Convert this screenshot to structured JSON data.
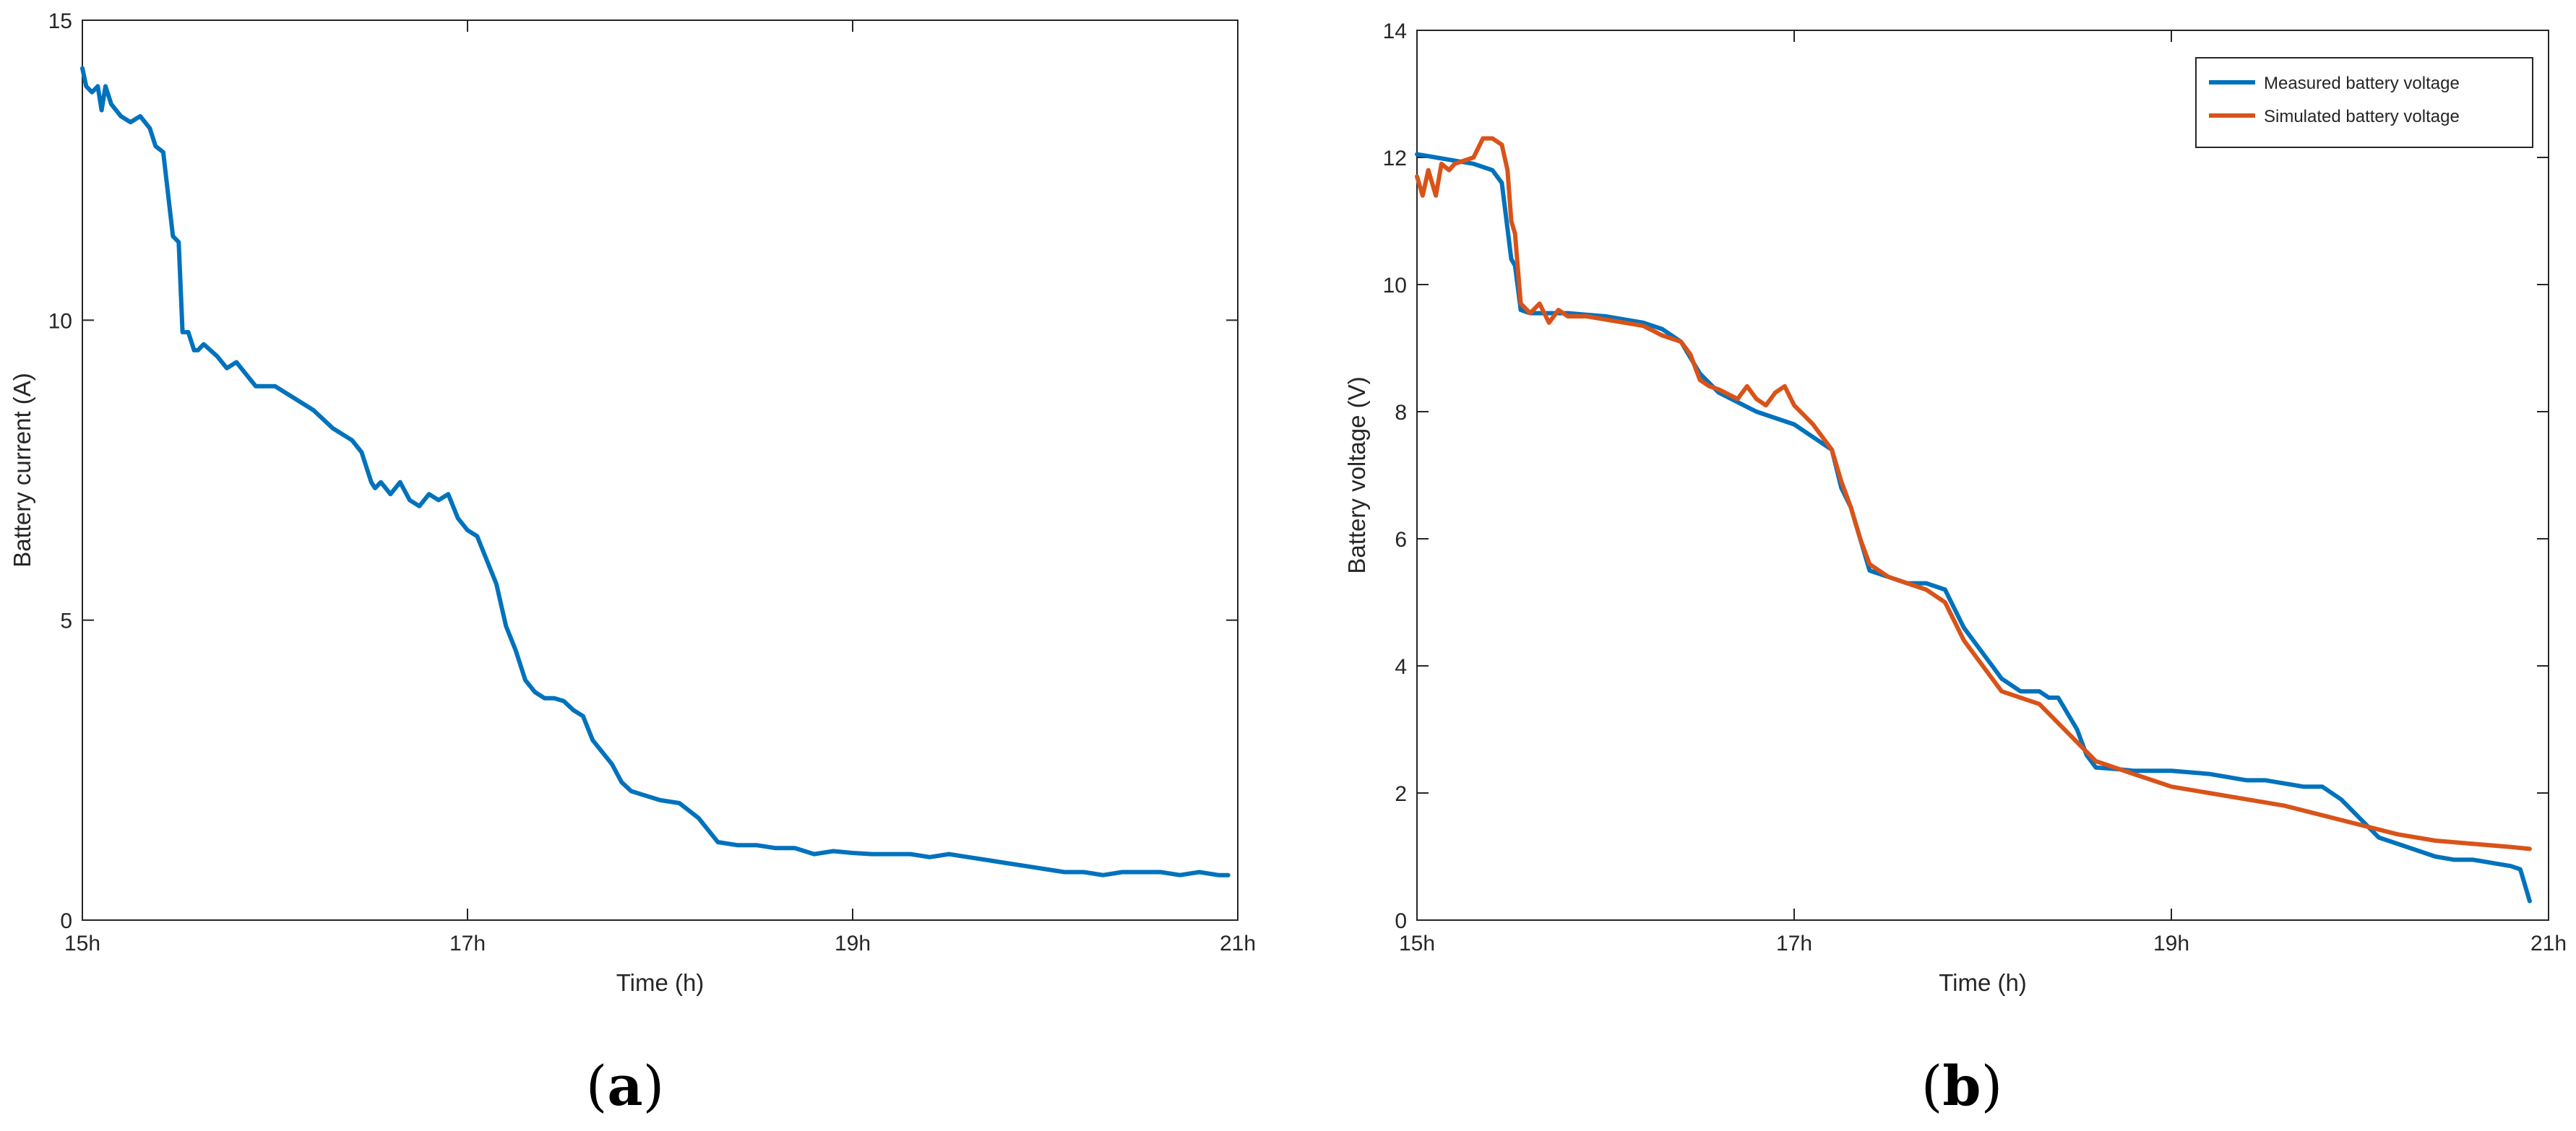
{
  "panels": [
    {
      "label": "a",
      "xlabel": "Time (h)",
      "ylabel": "Battery current (A)"
    },
    {
      "label": "b",
      "xlabel": "Time (h)",
      "ylabel": "Battery voltage (V)"
    }
  ],
  "chart_data": [
    {
      "type": "line",
      "title": "",
      "xlabel": "Time (h)",
      "ylabel": "Battery current (A)",
      "xlim": [
        15,
        21
      ],
      "ylim": [
        0,
        15
      ],
      "xticks": [
        15,
        17,
        19,
        21
      ],
      "xtick_labels": [
        "15h",
        "17h",
        "19h",
        "21h"
      ],
      "yticks": [
        0,
        5,
        10,
        15
      ],
      "ytick_labels": [
        "0",
        "5",
        "10",
        "15"
      ],
      "grid": false,
      "legend": null,
      "series": [
        {
          "color": "#0072BD",
          "x": [
            15.0,
            15.02,
            15.05,
            15.08,
            15.1,
            15.12,
            15.15,
            15.2,
            15.25,
            15.3,
            15.35,
            15.38,
            15.42,
            15.47,
            15.5,
            15.52,
            15.55,
            15.58,
            15.6,
            15.63,
            15.7,
            15.75,
            15.8,
            15.85,
            15.9,
            16.0,
            16.1,
            16.2,
            16.3,
            16.4,
            16.45,
            16.5,
            16.52,
            16.55,
            16.6,
            16.65,
            16.7,
            16.75,
            16.8,
            16.85,
            16.9,
            16.95,
            17.0,
            17.05,
            17.1,
            17.15,
            17.2,
            17.25,
            17.3,
            17.35,
            17.4,
            17.45,
            17.5,
            17.55,
            17.6,
            17.65,
            17.7,
            17.75,
            17.8,
            17.85,
            17.9,
            17.95,
            18.0,
            18.1,
            18.2,
            18.3,
            18.4,
            18.5,
            18.6,
            18.7,
            18.8,
            18.9,
            19.0,
            19.1,
            19.2,
            19.3,
            19.4,
            19.5,
            19.6,
            19.7,
            19.8,
            19.9,
            20.0,
            20.1,
            20.2,
            20.3,
            20.4,
            20.5,
            20.6,
            20.7,
            20.8,
            20.9,
            20.95
          ],
          "y": [
            14.2,
            13.9,
            13.8,
            13.9,
            13.5,
            13.9,
            13.6,
            13.4,
            13.3,
            13.4,
            13.2,
            12.9,
            12.8,
            11.4,
            11.3,
            9.8,
            9.8,
            9.5,
            9.5,
            9.6,
            9.4,
            9.2,
            9.3,
            9.1,
            8.9,
            8.9,
            8.7,
            8.5,
            8.2,
            8.0,
            7.8,
            7.3,
            7.2,
            7.3,
            7.1,
            7.3,
            7.0,
            6.9,
            7.1,
            7.0,
            7.1,
            6.7,
            6.5,
            6.4,
            6.0,
            5.6,
            4.9,
            4.5,
            4.0,
            3.8,
            3.7,
            3.7,
            3.65,
            3.5,
            3.4,
            3.0,
            2.8,
            2.6,
            2.3,
            2.15,
            2.1,
            2.05,
            2.0,
            1.95,
            1.7,
            1.3,
            1.25,
            1.25,
            1.2,
            1.2,
            1.1,
            1.15,
            1.12,
            1.1,
            1.1,
            1.1,
            1.05,
            1.1,
            1.05,
            1.0,
            0.95,
            0.9,
            0.85,
            0.8,
            0.8,
            0.75,
            0.8,
            0.8,
            0.8,
            0.75,
            0.8,
            0.75,
            0.75
          ]
        }
      ]
    },
    {
      "type": "line",
      "title": "",
      "xlabel": "Time (h)",
      "ylabel": "Battery voltage (V)",
      "xlim": [
        15,
        21
      ],
      "ylim": [
        0,
        14
      ],
      "xticks": [
        15,
        17,
        19,
        21
      ],
      "xtick_labels": [
        "15h",
        "17h",
        "19h",
        "21h"
      ],
      "yticks": [
        0,
        2,
        4,
        6,
        8,
        10,
        12,
        14
      ],
      "ytick_labels": [
        "0",
        "2",
        "4",
        "6",
        "8",
        "10",
        "12",
        "14"
      ],
      "grid": false,
      "legend": "top-right",
      "series": [
        {
          "name": "Measured battery voltage",
          "color": "#0072BD",
          "x": [
            15.0,
            15.1,
            15.2,
            15.3,
            15.4,
            15.45,
            15.5,
            15.52,
            15.55,
            15.6,
            15.7,
            15.8,
            16.0,
            16.2,
            16.3,
            16.4,
            16.5,
            16.6,
            16.8,
            17.0,
            17.1,
            17.2,
            17.25,
            17.3,
            17.35,
            17.4,
            17.5,
            17.6,
            17.7,
            17.8,
            17.9,
            18.0,
            18.05,
            18.1,
            18.2,
            18.3,
            18.35,
            18.4,
            18.5,
            18.55,
            18.6,
            18.7,
            18.8,
            19.0,
            19.2,
            19.4,
            19.5,
            19.6,
            19.7,
            19.8,
            19.9,
            20.0,
            20.1,
            20.2,
            20.4,
            20.5,
            20.6,
            20.7,
            20.8,
            20.85,
            20.9
          ],
          "y": [
            12.05,
            12.0,
            11.95,
            11.9,
            11.8,
            11.6,
            10.4,
            10.3,
            9.6,
            9.55,
            9.55,
            9.55,
            9.5,
            9.4,
            9.3,
            9.1,
            8.6,
            8.3,
            8.0,
            7.8,
            7.6,
            7.4,
            6.8,
            6.5,
            6.0,
            5.5,
            5.4,
            5.3,
            5.3,
            5.2,
            4.6,
            4.2,
            4.0,
            3.8,
            3.6,
            3.6,
            3.5,
            3.5,
            3.0,
            2.6,
            2.4,
            2.38,
            2.35,
            2.35,
            2.3,
            2.2,
            2.2,
            2.15,
            2.1,
            2.1,
            1.9,
            1.6,
            1.3,
            1.2,
            1.0,
            0.95,
            0.95,
            0.9,
            0.85,
            0.8,
            0.3
          ]
        },
        {
          "name": "Simulated battery voltage",
          "color": "#D95319",
          "x": [
            15.0,
            15.03,
            15.06,
            15.1,
            15.13,
            15.17,
            15.2,
            15.25,
            15.3,
            15.35,
            15.4,
            15.45,
            15.48,
            15.5,
            15.52,
            15.55,
            15.6,
            15.65,
            15.7,
            15.75,
            15.8,
            15.9,
            16.0,
            16.1,
            16.2,
            16.3,
            16.4,
            16.45,
            16.5,
            16.55,
            16.6,
            16.7,
            16.75,
            16.8,
            16.85,
            16.9,
            16.95,
            17.0,
            17.05,
            17.1,
            17.15,
            17.2,
            17.25,
            17.3,
            17.35,
            17.4,
            17.5,
            17.6,
            17.7,
            17.8,
            17.9,
            18.0,
            18.1,
            18.2,
            18.3,
            18.4,
            18.5,
            18.6,
            18.7,
            18.8,
            18.9,
            19.0,
            19.2,
            19.4,
            19.6,
            19.8,
            20.0,
            20.2,
            20.4,
            20.6,
            20.8,
            20.9
          ],
          "y": [
            11.7,
            11.4,
            11.8,
            11.4,
            11.9,
            11.8,
            11.9,
            11.95,
            12.0,
            12.3,
            12.3,
            12.2,
            11.8,
            11.0,
            10.8,
            9.7,
            9.55,
            9.7,
            9.4,
            9.6,
            9.5,
            9.5,
            9.45,
            9.4,
            9.35,
            9.2,
            9.1,
            8.9,
            8.5,
            8.4,
            8.35,
            8.2,
            8.4,
            8.2,
            8.1,
            8.3,
            8.4,
            8.1,
            7.95,
            7.8,
            7.6,
            7.4,
            6.9,
            6.5,
            6.0,
            5.6,
            5.4,
            5.3,
            5.2,
            5.0,
            4.4,
            4.0,
            3.6,
            3.5,
            3.4,
            3.1,
            2.8,
            2.5,
            2.4,
            2.3,
            2.2,
            2.1,
            2.0,
            1.9,
            1.8,
            1.65,
            1.5,
            1.35,
            1.25,
            1.2,
            1.15,
            1.12
          ]
        }
      ]
    }
  ]
}
